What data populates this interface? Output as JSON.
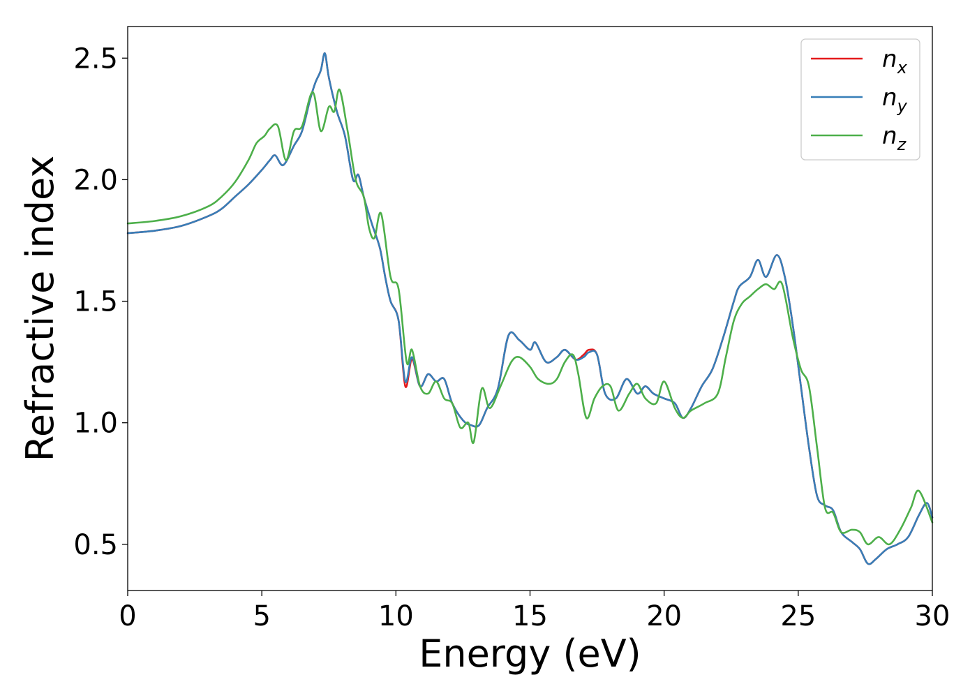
{
  "chart_data": {
    "type": "line",
    "xlabel": "Energy (eV)",
    "ylabel": "Refractive index",
    "xlim": [
      0,
      30
    ],
    "ylim": [
      0.31,
      2.63
    ],
    "xticks": [
      0,
      5,
      10,
      15,
      20,
      25,
      30
    ],
    "xtick_labels": [
      "0",
      "5",
      "10",
      "15",
      "20",
      "25",
      "30"
    ],
    "yticks": [
      0.5,
      1.0,
      1.5,
      2.0,
      2.5
    ],
    "ytick_labels": [
      "0.5",
      "1.0",
      "1.5",
      "2.0",
      "2.5"
    ],
    "grid": false,
    "legend_position": "top-right",
    "series": [
      {
        "name": "n",
        "subscript": "x",
        "color": "#e41a1c",
        "points": [
          [
            0,
            1.78
          ],
          [
            1,
            1.79
          ],
          [
            2,
            1.81
          ],
          [
            3,
            1.85
          ],
          [
            3.5,
            1.88
          ],
          [
            4,
            1.93
          ],
          [
            4.5,
            1.98
          ],
          [
            5,
            2.04
          ],
          [
            5.3,
            2.08
          ],
          [
            5.5,
            2.1
          ],
          [
            5.8,
            2.06
          ],
          [
            6.2,
            2.14
          ],
          [
            6.5,
            2.2
          ],
          [
            6.8,
            2.33
          ],
          [
            7,
            2.4
          ],
          [
            7.2,
            2.45
          ],
          [
            7.35,
            2.52
          ],
          [
            7.5,
            2.42
          ],
          [
            7.8,
            2.28
          ],
          [
            8.1,
            2.18
          ],
          [
            8.4,
            2.0
          ],
          [
            8.6,
            2.02
          ],
          [
            8.8,
            1.93
          ],
          [
            9.1,
            1.82
          ],
          [
            9.4,
            1.72
          ],
          [
            9.6,
            1.6
          ],
          [
            9.8,
            1.5
          ],
          [
            10.1,
            1.42
          ],
          [
            10.35,
            1.15
          ],
          [
            10.6,
            1.26
          ],
          [
            10.9,
            1.15
          ],
          [
            11.2,
            1.2
          ],
          [
            11.5,
            1.17
          ],
          [
            11.8,
            1.18
          ],
          [
            12.1,
            1.08
          ],
          [
            12.5,
            1.01
          ],
          [
            12.8,
            0.99
          ],
          [
            13.1,
            0.99
          ],
          [
            13.4,
            1.06
          ],
          [
            13.8,
            1.14
          ],
          [
            14.2,
            1.36
          ],
          [
            14.6,
            1.34
          ],
          [
            15.0,
            1.3
          ],
          [
            15.2,
            1.33
          ],
          [
            15.6,
            1.25
          ],
          [
            16.0,
            1.27
          ],
          [
            16.3,
            1.3
          ],
          [
            16.7,
            1.26
          ],
          [
            17.0,
            1.28
          ],
          [
            17.2,
            1.3
          ],
          [
            17.5,
            1.28
          ],
          [
            17.8,
            1.12
          ],
          [
            18.2,
            1.1
          ],
          [
            18.6,
            1.18
          ],
          [
            19.0,
            1.12
          ],
          [
            19.3,
            1.15
          ],
          [
            19.6,
            1.12
          ],
          [
            20.0,
            1.1
          ],
          [
            20.4,
            1.08
          ],
          [
            20.7,
            1.02
          ],
          [
            21.0,
            1.06
          ],
          [
            21.4,
            1.15
          ],
          [
            21.8,
            1.22
          ],
          [
            22.2,
            1.35
          ],
          [
            22.6,
            1.5
          ],
          [
            22.8,
            1.56
          ],
          [
            23.2,
            1.6
          ],
          [
            23.5,
            1.67
          ],
          [
            23.8,
            1.6
          ],
          [
            24.2,
            1.69
          ],
          [
            24.5,
            1.6
          ],
          [
            24.8,
            1.4
          ],
          [
            25.1,
            1.15
          ],
          [
            25.4,
            0.9
          ],
          [
            25.7,
            0.7
          ],
          [
            26.0,
            0.66
          ],
          [
            26.3,
            0.64
          ],
          [
            26.6,
            0.55
          ],
          [
            27.0,
            0.51
          ],
          [
            27.3,
            0.48
          ],
          [
            27.6,
            0.42
          ],
          [
            27.9,
            0.44
          ],
          [
            28.3,
            0.48
          ],
          [
            28.7,
            0.5
          ],
          [
            29.1,
            0.53
          ],
          [
            29.5,
            0.62
          ],
          [
            29.8,
            0.67
          ],
          [
            30,
            0.61
          ]
        ]
      },
      {
        "name": "n",
        "subscript": "y",
        "color": "#377eb8",
        "points": [
          [
            0,
            1.78
          ],
          [
            1,
            1.79
          ],
          [
            2,
            1.81
          ],
          [
            3,
            1.85
          ],
          [
            3.5,
            1.88
          ],
          [
            4,
            1.93
          ],
          [
            4.5,
            1.98
          ],
          [
            5,
            2.04
          ],
          [
            5.3,
            2.08
          ],
          [
            5.5,
            2.1
          ],
          [
            5.8,
            2.06
          ],
          [
            6.2,
            2.14
          ],
          [
            6.5,
            2.2
          ],
          [
            6.8,
            2.33
          ],
          [
            7,
            2.4
          ],
          [
            7.2,
            2.45
          ],
          [
            7.35,
            2.52
          ],
          [
            7.5,
            2.42
          ],
          [
            7.8,
            2.28
          ],
          [
            8.1,
            2.18
          ],
          [
            8.4,
            2.0
          ],
          [
            8.6,
            2.02
          ],
          [
            8.8,
            1.93
          ],
          [
            9.1,
            1.82
          ],
          [
            9.4,
            1.72
          ],
          [
            9.6,
            1.6
          ],
          [
            9.8,
            1.5
          ],
          [
            10.1,
            1.42
          ],
          [
            10.35,
            1.17
          ],
          [
            10.6,
            1.27
          ],
          [
            10.9,
            1.15
          ],
          [
            11.2,
            1.2
          ],
          [
            11.5,
            1.17
          ],
          [
            11.8,
            1.18
          ],
          [
            12.1,
            1.08
          ],
          [
            12.5,
            1.01
          ],
          [
            12.8,
            0.99
          ],
          [
            13.1,
            0.99
          ],
          [
            13.4,
            1.06
          ],
          [
            13.8,
            1.14
          ],
          [
            14.2,
            1.36
          ],
          [
            14.6,
            1.34
          ],
          [
            15.0,
            1.3
          ],
          [
            15.2,
            1.33
          ],
          [
            15.6,
            1.25
          ],
          [
            16.0,
            1.27
          ],
          [
            16.3,
            1.3
          ],
          [
            16.7,
            1.26
          ],
          [
            17.0,
            1.27
          ],
          [
            17.2,
            1.29
          ],
          [
            17.5,
            1.28
          ],
          [
            17.8,
            1.12
          ],
          [
            18.2,
            1.1
          ],
          [
            18.6,
            1.18
          ],
          [
            19.0,
            1.12
          ],
          [
            19.3,
            1.15
          ],
          [
            19.6,
            1.12
          ],
          [
            20.0,
            1.1
          ],
          [
            20.4,
            1.08
          ],
          [
            20.7,
            1.02
          ],
          [
            21.0,
            1.06
          ],
          [
            21.4,
            1.15
          ],
          [
            21.8,
            1.22
          ],
          [
            22.2,
            1.35
          ],
          [
            22.6,
            1.5
          ],
          [
            22.8,
            1.56
          ],
          [
            23.2,
            1.6
          ],
          [
            23.5,
            1.67
          ],
          [
            23.8,
            1.6
          ],
          [
            24.2,
            1.69
          ],
          [
            24.5,
            1.6
          ],
          [
            24.8,
            1.4
          ],
          [
            25.1,
            1.15
          ],
          [
            25.4,
            0.9
          ],
          [
            25.7,
            0.7
          ],
          [
            26.0,
            0.66
          ],
          [
            26.3,
            0.64
          ],
          [
            26.6,
            0.55
          ],
          [
            27.0,
            0.51
          ],
          [
            27.3,
            0.48
          ],
          [
            27.6,
            0.42
          ],
          [
            27.9,
            0.44
          ],
          [
            28.3,
            0.48
          ],
          [
            28.7,
            0.5
          ],
          [
            29.1,
            0.53
          ],
          [
            29.5,
            0.62
          ],
          [
            29.8,
            0.67
          ],
          [
            30,
            0.61
          ]
        ]
      },
      {
        "name": "n",
        "subscript": "z",
        "color": "#4daf4a",
        "points": [
          [
            0,
            1.82
          ],
          [
            1,
            1.83
          ],
          [
            2,
            1.85
          ],
          [
            3,
            1.89
          ],
          [
            3.5,
            1.93
          ],
          [
            4,
            1.99
          ],
          [
            4.5,
            2.08
          ],
          [
            4.8,
            2.15
          ],
          [
            5.1,
            2.18
          ],
          [
            5.3,
            2.21
          ],
          [
            5.6,
            2.22
          ],
          [
            5.9,
            2.08
          ],
          [
            6.2,
            2.2
          ],
          [
            6.5,
            2.22
          ],
          [
            6.9,
            2.36
          ],
          [
            7.2,
            2.2
          ],
          [
            7.5,
            2.3
          ],
          [
            7.7,
            2.28
          ],
          [
            7.9,
            2.37
          ],
          [
            8.2,
            2.2
          ],
          [
            8.5,
            2.0
          ],
          [
            8.8,
            1.93
          ],
          [
            9.0,
            1.8
          ],
          [
            9.2,
            1.76
          ],
          [
            9.45,
            1.86
          ],
          [
            9.8,
            1.6
          ],
          [
            10.1,
            1.55
          ],
          [
            10.4,
            1.25
          ],
          [
            10.6,
            1.3
          ],
          [
            10.9,
            1.15
          ],
          [
            11.2,
            1.12
          ],
          [
            11.5,
            1.17
          ],
          [
            11.8,
            1.1
          ],
          [
            12.1,
            1.08
          ],
          [
            12.4,
            0.98
          ],
          [
            12.7,
            1.0
          ],
          [
            12.9,
            0.92
          ],
          [
            13.2,
            1.14
          ],
          [
            13.5,
            1.06
          ],
          [
            13.9,
            1.15
          ],
          [
            14.3,
            1.25
          ],
          [
            14.6,
            1.27
          ],
          [
            15.0,
            1.23
          ],
          [
            15.3,
            1.18
          ],
          [
            15.7,
            1.16
          ],
          [
            16.0,
            1.18
          ],
          [
            16.3,
            1.25
          ],
          [
            16.6,
            1.28
          ],
          [
            16.8,
            1.2
          ],
          [
            17.1,
            1.02
          ],
          [
            17.4,
            1.1
          ],
          [
            17.7,
            1.15
          ],
          [
            18.0,
            1.15
          ],
          [
            18.3,
            1.05
          ],
          [
            18.7,
            1.12
          ],
          [
            19.0,
            1.16
          ],
          [
            19.3,
            1.1
          ],
          [
            19.7,
            1.08
          ],
          [
            20.0,
            1.17
          ],
          [
            20.4,
            1.06
          ],
          [
            20.7,
            1.02
          ],
          [
            21.0,
            1.05
          ],
          [
            21.5,
            1.08
          ],
          [
            22.0,
            1.12
          ],
          [
            22.3,
            1.27
          ],
          [
            22.6,
            1.42
          ],
          [
            22.9,
            1.49
          ],
          [
            23.2,
            1.52
          ],
          [
            23.5,
            1.55
          ],
          [
            23.8,
            1.57
          ],
          [
            24.1,
            1.55
          ],
          [
            24.4,
            1.57
          ],
          [
            24.8,
            1.35
          ],
          [
            25.1,
            1.22
          ],
          [
            25.4,
            1.15
          ],
          [
            25.7,
            0.9
          ],
          [
            26.0,
            0.65
          ],
          [
            26.3,
            0.63
          ],
          [
            26.6,
            0.55
          ],
          [
            27.0,
            0.56
          ],
          [
            27.3,
            0.55
          ],
          [
            27.6,
            0.5
          ],
          [
            28.0,
            0.53
          ],
          [
            28.4,
            0.5
          ],
          [
            28.8,
            0.56
          ],
          [
            29.2,
            0.65
          ],
          [
            29.5,
            0.72
          ],
          [
            30,
            0.59
          ]
        ]
      }
    ]
  }
}
